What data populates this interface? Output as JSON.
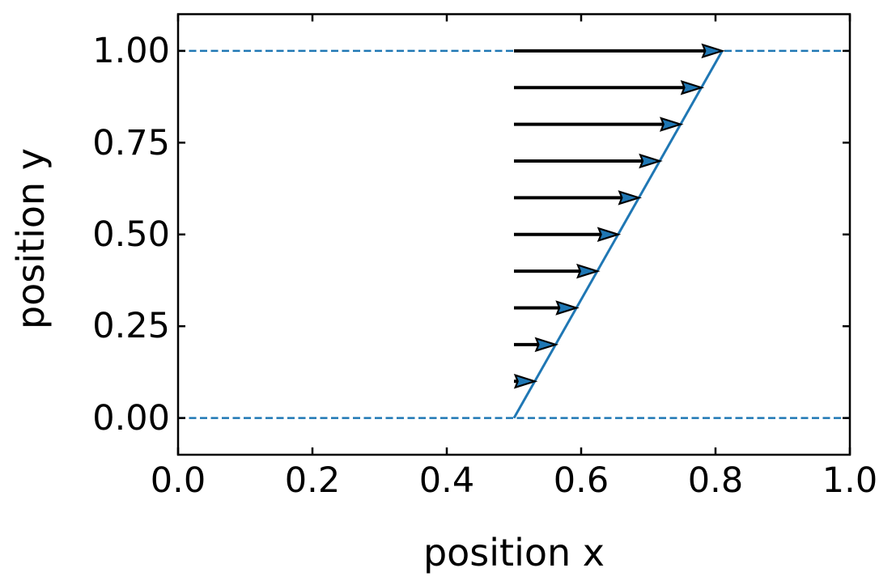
{
  "chart_data": {
    "type": "quiver",
    "title": "",
    "xlabel": "position x",
    "ylabel": "position y",
    "xlim": [
      0.0,
      1.0
    ],
    "ylim": [
      -0.1,
      1.1
    ],
    "xticks": [
      0.0,
      0.2,
      0.4,
      0.6,
      0.8,
      1.0
    ],
    "xtick_labels": [
      "0.0",
      "0.2",
      "0.4",
      "0.6",
      "0.8",
      "1.0"
    ],
    "yticks": [
      0.0,
      0.25,
      0.5,
      0.75,
      1.0
    ],
    "ytick_labels": [
      "0.00",
      "0.25",
      "0.50",
      "0.75",
      "1.00"
    ],
    "grid": false,
    "legend": false,
    "tick_direction": "in",
    "background_color": "#ffffff",
    "accent_color": "#1f77b4",
    "shaft_color": "#000000",
    "spine_color": "#000000",
    "walls_y": [
      0.0,
      1.0
    ],
    "wall_line_style": "dashed",
    "quiver": {
      "tail_x": 0.5,
      "y": [
        0.1,
        0.2,
        0.3,
        0.4,
        0.5,
        0.6,
        0.7,
        0.8,
        0.9,
        1.0
      ],
      "u": [
        0.1,
        0.2,
        0.3,
        0.4,
        0.5,
        0.6,
        0.7,
        0.8,
        0.9,
        1.0
      ],
      "dx_scale": 0.31
    },
    "profile_line": {
      "x": [
        0.5,
        0.81
      ],
      "y": [
        0.0,
        1.0
      ]
    }
  }
}
